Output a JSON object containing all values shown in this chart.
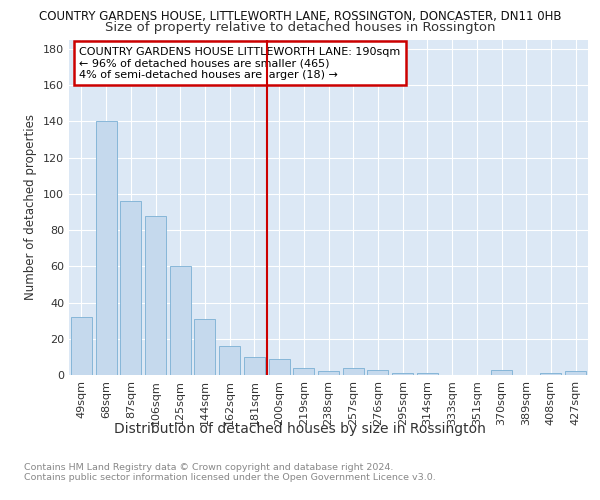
{
  "title1": "COUNTRY GARDENS HOUSE, LITTLEWORTH LANE, ROSSINGTON, DONCASTER, DN11 0HB",
  "title2": "Size of property relative to detached houses in Rossington",
  "xlabel": "Distribution of detached houses by size in Rossington",
  "ylabel": "Number of detached properties",
  "categories": [
    "49sqm",
    "68sqm",
    "87sqm",
    "106sqm",
    "125sqm",
    "144sqm",
    "162sqm",
    "181sqm",
    "200sqm",
    "219sqm",
    "238sqm",
    "257sqm",
    "276sqm",
    "295sqm",
    "314sqm",
    "333sqm",
    "351sqm",
    "370sqm",
    "389sqm",
    "408sqm",
    "427sqm"
  ],
  "values": [
    32,
    140,
    96,
    88,
    60,
    31,
    16,
    10,
    9,
    4,
    2,
    4,
    3,
    1,
    1,
    0,
    0,
    3,
    0,
    1,
    2
  ],
  "bar_color": "#c5d9ed",
  "bar_edge_color": "#7aafd4",
  "vline_x": 7.5,
  "vline_color": "#cc0000",
  "annotation_text": "COUNTRY GARDENS HOUSE LITTLEWORTH LANE: 190sqm\n← 96% of detached houses are smaller (465)\n4% of semi-detached houses are larger (18) →",
  "annotation_box_color": "#ffffff",
  "annotation_box_edge_color": "#cc0000",
  "ylim": [
    0,
    185
  ],
  "yticks": [
    0,
    20,
    40,
    60,
    80,
    100,
    120,
    140,
    160,
    180
  ],
  "background_color": "#dce8f5",
  "footer_text": "Contains HM Land Registry data © Crown copyright and database right 2024.\nContains public sector information licensed under the Open Government Licence v3.0.",
  "title1_fontsize": 8.5,
  "title2_fontsize": 9.5,
  "xlabel_fontsize": 10,
  "ylabel_fontsize": 8.5,
  "tick_fontsize": 8,
  "annotation_fontsize": 8,
  "footer_fontsize": 6.8
}
